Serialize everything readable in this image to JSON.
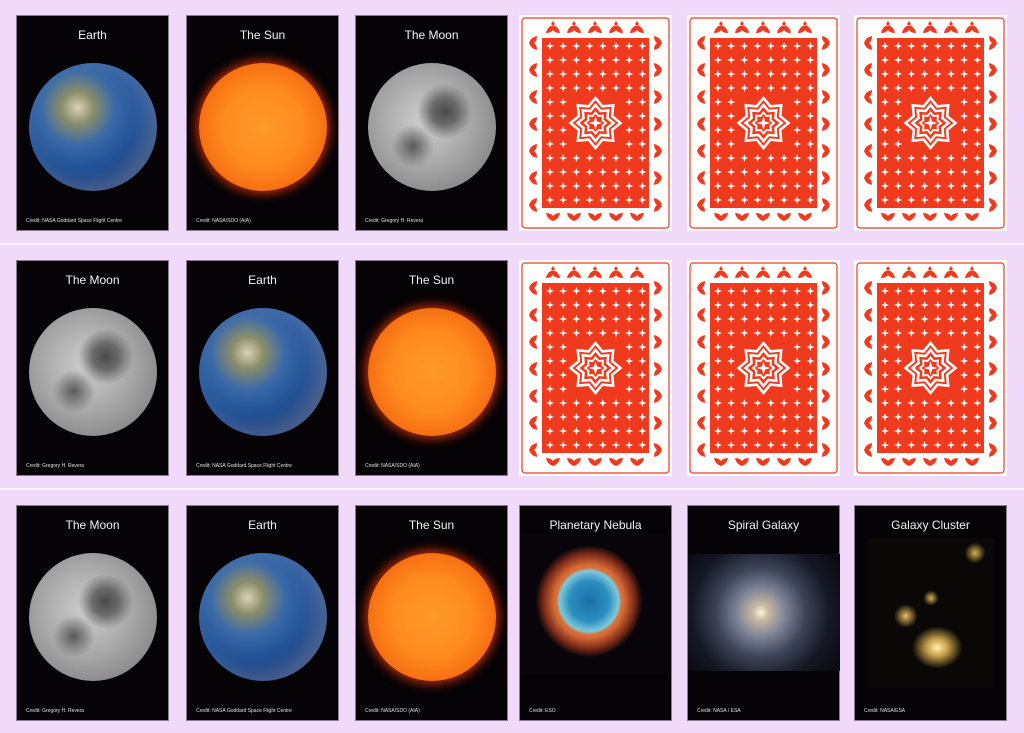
{
  "colors": {
    "background": "#f1d9f9",
    "card_back_red": "#f03a1e",
    "card_face": "#050306"
  },
  "rows": [
    [
      {
        "state": "face",
        "title": "Earth",
        "image": "earth",
        "credit": "Credit: NASA Goddard Space Flight Centre"
      },
      {
        "state": "face",
        "title": "The Sun",
        "image": "sun",
        "credit": "Credit: NASA/SDO (AIA)"
      },
      {
        "state": "face",
        "title": "The Moon",
        "image": "moon",
        "credit": "Credit: Gregory H. Revera"
      },
      {
        "state": "back"
      },
      {
        "state": "back"
      },
      {
        "state": "back"
      }
    ],
    [
      {
        "state": "face",
        "title": "The Moon",
        "image": "moon",
        "credit": "Credit: Gregory H. Revera"
      },
      {
        "state": "face",
        "title": "Earth",
        "image": "earth",
        "credit": "Credit: NASA Goddard Space Flight Centre"
      },
      {
        "state": "face",
        "title": "The Sun",
        "image": "sun",
        "credit": "Credit: NASA/SDO (AIA)"
      },
      {
        "state": "back"
      },
      {
        "state": "back"
      },
      {
        "state": "back"
      }
    ],
    [
      {
        "state": "face",
        "title": "The Moon",
        "image": "moon",
        "credit": "Credit: Gregory H. Revera"
      },
      {
        "state": "face",
        "title": "Earth",
        "image": "earth",
        "credit": "Credit: NASA Goddard Space Flight Centre"
      },
      {
        "state": "face",
        "title": "The Sun",
        "image": "sun",
        "credit": "Credit: NASA/SDO (AIA)"
      },
      {
        "state": "face",
        "title": "Planetary Nebula",
        "image": "nebula",
        "credit": "Credit: ESO"
      },
      {
        "state": "face",
        "title": "Spiral Galaxy",
        "image": "spiral",
        "credit": "Credit: NASA / ESA"
      },
      {
        "state": "face",
        "title": "Galaxy Cluster",
        "image": "cluster",
        "credit": "Credit: NASA/ESA"
      }
    ]
  ]
}
